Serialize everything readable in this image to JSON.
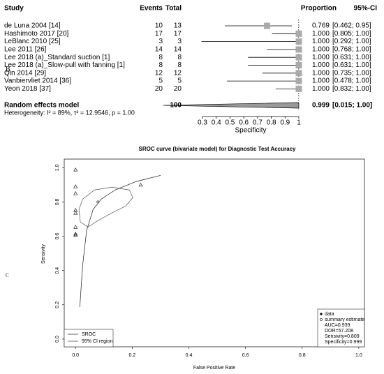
{
  "chart_data": [
    {
      "type": "forest",
      "panel": "B",
      "headers": [
        "Study",
        "Events",
        "Total",
        "Proportion",
        "95%-CI"
      ],
      "studies": [
        "de Luna 2004 [14]",
        "Hashimoto 2017 [20]",
        "LeBlanc 2010 [25]",
        "Lee 2011 [26]",
        "Lee 2018 (a)_Standard suction [1]",
        "Lee 2018 (a)_Slow-pull with fanning [1]",
        "Qin 2014 [29]",
        "Vanbiervliet 2014 [36]",
        "Yeon 2018 [37]"
      ],
      "events": [
        10,
        17,
        3,
        14,
        8,
        8,
        12,
        5,
        20
      ],
      "totals": [
        13,
        17,
        3,
        14,
        8,
        8,
        12,
        5,
        20
      ],
      "values": [
        0.769,
        1,
        1,
        1,
        1,
        1,
        1,
        1,
        1
      ],
      "value_labels": [
        "0.769",
        "1.000",
        "1.000",
        "1.000",
        "1.000",
        "1.000",
        "1.000",
        "1.000",
        "1.000"
      ],
      "ci_lower": [
        0.462,
        0.805,
        0.292,
        0.768,
        0.631,
        0.631,
        0.735,
        0.478,
        0.832
      ],
      "ci_upper": [
        0.95,
        1,
        1,
        1,
        1,
        1,
        1,
        1,
        1
      ],
      "ci_labels": [
        "[0.462; 0.95]",
        "[0.805; 1.00]",
        "[0.292; 1.00]",
        "[0.768; 1.00]",
        "[0.631; 1.00]",
        "[0.631; 1.00]",
        "[0.735; 1.00]",
        "[0.478; 1.00]",
        "[0.832; 1.00]"
      ],
      "pooled": {
        "name": "Random effects model",
        "total": 100,
        "value": 0.999,
        "ci_lower": 0.015,
        "ci_upper": 1,
        "ci_label": "[0.015; 1.00]"
      },
      "heterogeneity": "Heterogeneity: I² = 89%, τ² = 12.9546, p = 1.00",
      "xlabel": "Specificity",
      "xlim": [
        0.3,
        1
      ],
      "xticks": [
        0.3,
        0.4,
        0.5,
        0.6,
        0.7,
        0.8,
        0.9,
        1
      ]
    },
    {
      "type": "sroc",
      "panel": "C",
      "title": "SROC curve (bivariate model) for Diagnostic Test Accuracy",
      "xlabel": "False Positive Rate",
      "ylabel": "Sensivity",
      "xlim": [
        -0.04,
        1.02
      ],
      "ylim": [
        -0.045,
        1.05
      ],
      "xticks": [
        {
          "value": 0,
          "label": "0.0"
        },
        0.2,
        0.4,
        0.6,
        0.8,
        {
          "value": 1,
          "label": "1.0"
        }
      ],
      "yticks": [
        {
          "value": 0,
          "label": "0.0"
        },
        0.2,
        0.4,
        0.6,
        0.8,
        {
          "value": 1,
          "label": "1.0"
        }
      ],
      "series": [
        {
          "name": "data",
          "type": "scatter",
          "legend": "bottom-right",
          "color": "#000",
          "x": [
            0,
            0,
            0,
            0,
            0,
            0,
            0,
            0,
            0.23
          ],
          "values": [
            0.988,
            0.89,
            0.85,
            0.752,
            0.736,
            0.654,
            0.614,
            0.606,
            0.9
          ]
        },
        {
          "name": "summary estimate",
          "type": "point",
          "legend": "bottom-right",
          "color": "#000",
          "x": [
            0.079
          ],
          "values": [
            0.8
          ]
        },
        {
          "name": "SROC",
          "type": "line",
          "legend": "bottom-left",
          "color": "#333",
          "x": [
            0.015,
            0.025,
            0.039,
            0.062,
            0.091,
            0.14,
            0.214,
            0.3
          ],
          "values": [
            0.187,
            0.431,
            0.634,
            0.756,
            0.817,
            0.87,
            0.919,
            0.955
          ]
        },
        {
          "name": "95% CI region",
          "type": "region",
          "legend": "bottom-left",
          "color": "#555",
          "x": [
            0.012,
            0.025,
            0.067,
            0.128,
            0.19,
            0.202,
            0.177,
            0.128,
            0.079,
            0.044,
            0.017
          ],
          "values": [
            0.756,
            0.817,
            0.87,
            0.886,
            0.87,
            0.825,
            0.776,
            0.736,
            0.691,
            0.654,
            0.683
          ]
        }
      ],
      "annotations": [
        "AUC=0.939",
        "DOR=57.208",
        "Sensivity=0.809",
        "Specificity=0.999"
      ]
    }
  ]
}
